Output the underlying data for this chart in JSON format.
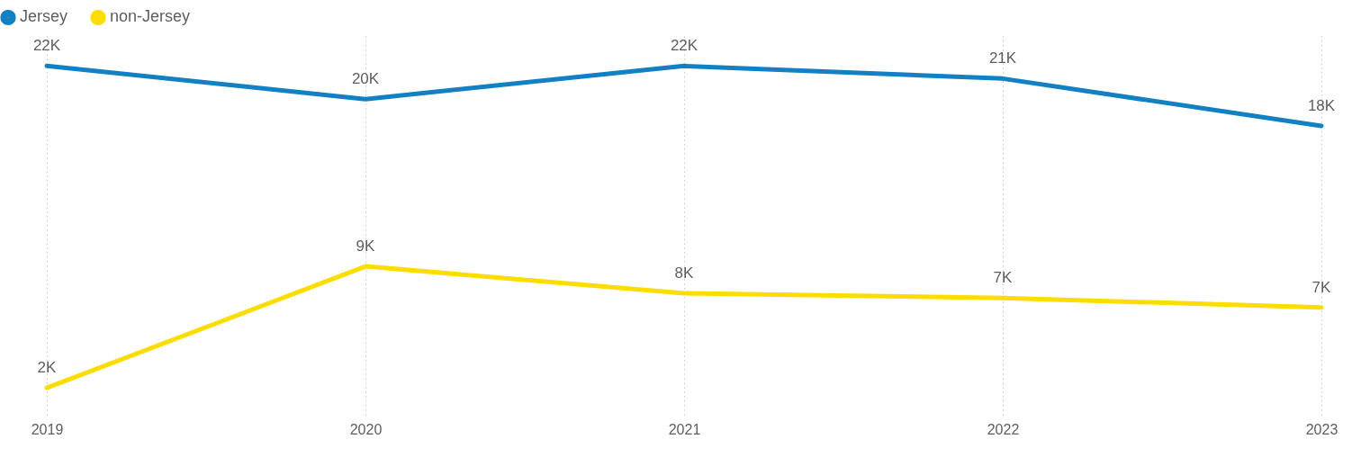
{
  "chart_data": {
    "type": "line",
    "categories": [
      "2019",
      "2020",
      "2021",
      "2022",
      "2023"
    ],
    "series": [
      {
        "name": "Jersey",
        "color": "#1380c4",
        "values": [
          22100,
          20000,
          22100,
          21300,
          18300
        ],
        "value_labels": [
          "22K",
          "20K",
          "22K",
          "21K",
          "18K"
        ]
      },
      {
        "name": "non-Jersey",
        "color": "#fddd00",
        "values": [
          1700,
          9400,
          7700,
          7400,
          6800
        ],
        "value_labels": [
          "2K",
          "9K",
          "8K",
          "7K",
          "7K"
        ]
      }
    ],
    "grid": "x",
    "legend": "top left",
    "marker": "none",
    "line_style": "solid"
  }
}
